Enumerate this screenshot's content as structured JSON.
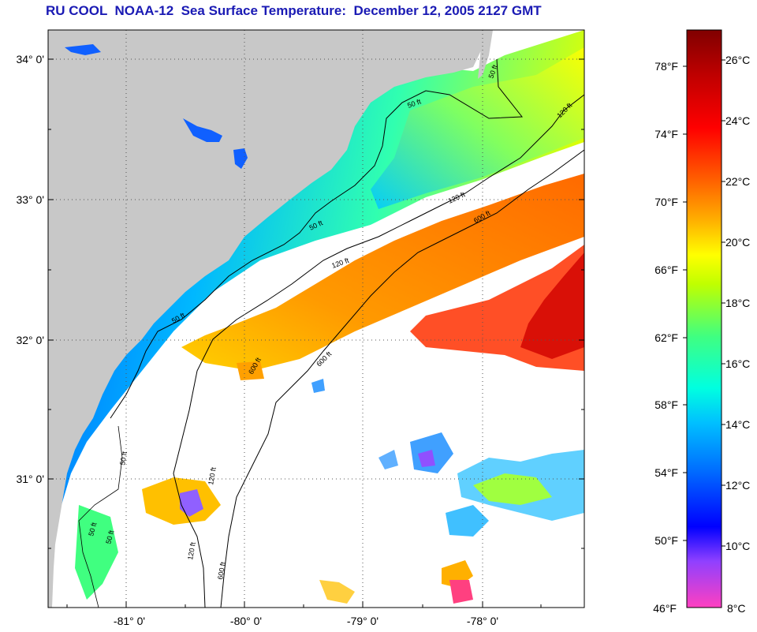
{
  "title": "RU COOL  NOAA-12  Sea Surface Temperature:  December 12, 2005 2127 GMT",
  "map": {
    "latitude_labels": [
      "34° 0'",
      "33° 0'",
      "32° 0'",
      "31° 0'"
    ],
    "longitude_labels": [
      "-81° 0'",
      "-80° 0'",
      "-79° 0'",
      "-78° 0'"
    ],
    "contour_labels": [
      "50 ft",
      "50 ft",
      "50 ft",
      "50 ft",
      "50 ft",
      "120 ft",
      "120 ft",
      "120 ft",
      "120 ft",
      "120 ft",
      "600 ft",
      "600 ft",
      "600 ft",
      "600 ft",
      "50 ft",
      "50 ft"
    ],
    "colors": {
      "land": "#c8c8c8",
      "cloud": "#ffffff",
      "grid": "#555555",
      "contour": "#000000"
    }
  },
  "colorbar": {
    "fahrenheit_labels": [
      "78°F",
      "74°F",
      "70°F",
      "66°F",
      "62°F",
      "58°F",
      "54°F",
      "50°F",
      "46°F"
    ],
    "celsius_labels": [
      "26°C",
      "24°C",
      "22°C",
      "20°C",
      "18°C",
      "16°C",
      "14°C",
      "12°C",
      "10°C",
      "8°C"
    ],
    "range_celsius": [
      8,
      27
    ],
    "range_fahrenheit": [
      46,
      80.6
    ],
    "palette": [
      "#ff40c0",
      "#8040ff",
      "#0000ff",
      "#0060ff",
      "#00b0ff",
      "#00ffe0",
      "#40ff80",
      "#c0ff00",
      "#ffff00",
      "#ffb000",
      "#ff6000",
      "#ff0000",
      "#c00000",
      "#800000"
    ]
  }
}
